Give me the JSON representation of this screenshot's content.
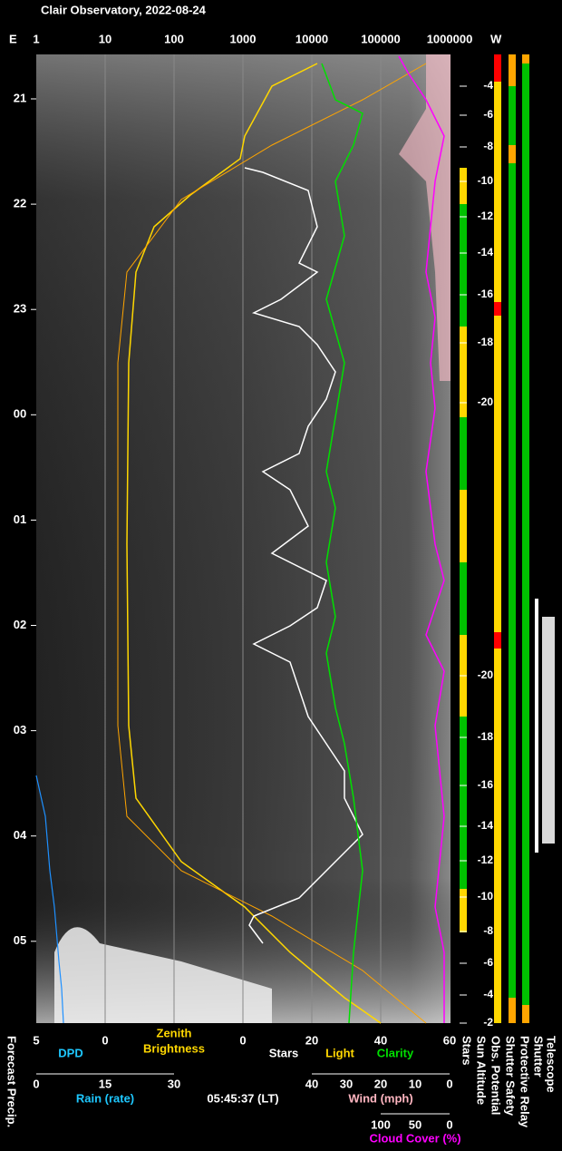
{
  "header": {
    "title": "Clair Observatory, 2022-08-24",
    "east": "E",
    "west": "W"
  },
  "top_axis": [
    "1",
    "10",
    "100",
    "1000",
    "10000",
    "100000",
    "1000000"
  ],
  "hours": [
    "21",
    "22",
    "23",
    "00",
    "01",
    "02",
    "03",
    "04",
    "05"
  ],
  "sun_altitude_evening": [
    "-4",
    "-6",
    "-8",
    "-10",
    "-12",
    "-14",
    "-16",
    "-18",
    "-20"
  ],
  "sun_altitude_morning": [
    "-20",
    "-18",
    "-16",
    "-14",
    "-12",
    "-10",
    "-8",
    "-6",
    "-4",
    "-2"
  ],
  "bottom_axis_1": {
    "ticks": [
      "5",
      "0",
      "0",
      "20",
      "40",
      "60"
    ],
    "dpd": "DPD",
    "zenith": "Zenith",
    "brightness": "Brightness",
    "stars": "Stars",
    "light": "Light",
    "clarity": "Clarity"
  },
  "bottom_axis_2": {
    "rain_ticks": [
      "0",
      "15",
      "30"
    ],
    "rain": "Rain (rate)",
    "time": "05:45:37 (LT)",
    "wind_ticks": [
      "40",
      "30",
      "20",
      "10",
      "0"
    ],
    "wind": "Wind (mph)"
  },
  "bottom_axis_3": {
    "cloud_ticks": [
      "100",
      "50",
      "0"
    ],
    "cloud": "Cloud Cover (%)"
  },
  "side_labels": {
    "forecast": "Forecast Precip.",
    "stars": "Stars",
    "sun_altitude": "Sun Altitude",
    "obs_potential": "Obs. Potential",
    "shutter_safety": "Shutter Safety",
    "protective_relay": "Protective Relay",
    "shutter": "Shutter",
    "telescope": "Telescope"
  }
}
